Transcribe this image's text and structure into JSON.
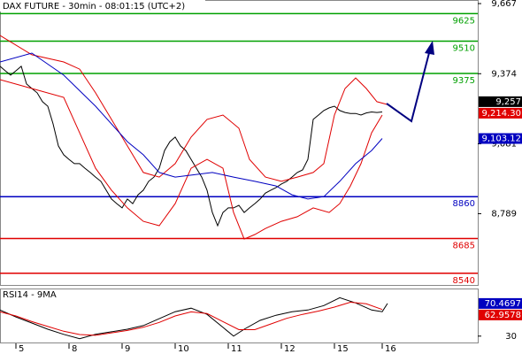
{
  "chart_data": {
    "type": "line",
    "title": "DAX FUTURE - 30min - 08:01:15 (UTC+2)",
    "xlim": [
      0,
      90
    ],
    "xticks": [
      {
        "value": 3,
        "label": "5"
      },
      {
        "value": 13,
        "label": "8"
      },
      {
        "value": 23,
        "label": "9"
      },
      {
        "value": 33,
        "label": "10"
      },
      {
        "value": 43,
        "label": "11"
      },
      {
        "value": 53,
        "label": "12"
      },
      {
        "value": 63,
        "label": "15"
      },
      {
        "value": 72,
        "label": "16"
      }
    ],
    "ylim": [
      8491,
      9682
    ],
    "yticks": [
      {
        "value": 9667,
        "label": "9,667"
      },
      {
        "value": 9374,
        "label": "9,374"
      },
      {
        "value": 9081,
        "label": "9,081"
      },
      {
        "value": 8789,
        "label": "8,789"
      }
    ],
    "series": [
      {
        "color": "#000000",
        "x": [
          0,
          1,
          2,
          3,
          4,
          5,
          6,
          7,
          8,
          9,
          10,
          11,
          12,
          13,
          14,
          15,
          16,
          17,
          18,
          19,
          20,
          21,
          22,
          23,
          24,
          25,
          26,
          27,
          28,
          29,
          30,
          31,
          32,
          33,
          34,
          35,
          36,
          37,
          38,
          39,
          40,
          41,
          42,
          43,
          44,
          45,
          46,
          47,
          48,
          49,
          50,
          51,
          52,
          53,
          54,
          55,
          56,
          57,
          58,
          59,
          60,
          61,
          62,
          63,
          64,
          65,
          66,
          67,
          68,
          69,
          70,
          71,
          72
        ],
        "values": [
          9405,
          9386,
          9368,
          9386,
          9405,
          9331,
          9312,
          9294,
          9257,
          9238,
          9164,
          9072,
          9035,
          9016,
          8998,
          8998,
          8979,
          8961,
          8942,
          8924,
          8887,
          8850,
          8831,
          8813,
          8850,
          8831,
          8868,
          8887,
          8924,
          8942,
          8979,
          9053,
          9090,
          9109,
          9072,
          9053,
          9016,
          8979,
          8942,
          8887,
          8794,
          8739,
          8794,
          8813,
          8813,
          8824,
          8794,
          8813,
          8831,
          8850,
          8875,
          8887,
          8898,
          8913,
          8924,
          8942,
          8961,
          8972,
          9016,
          9183,
          9201,
          9220,
          9231,
          9238,
          9220,
          9212,
          9208,
          9208,
          9201,
          9210,
          9214,
          9212,
          9214
        ]
      },
      {
        "color": "#e00000",
        "x": [
          0,
          6,
          12,
          15,
          18,
          21,
          24,
          27,
          30,
          33,
          36,
          39,
          42,
          45,
          47,
          50,
          53,
          56,
          59,
          61,
          63,
          65,
          67,
          69,
          71,
          73
        ],
        "values": [
          9534,
          9453,
          9423,
          9393,
          9294,
          9183,
          9072,
          8961,
          8942,
          8998,
          9109,
          9183,
          9201,
          9146,
          9016,
          8942,
          8924,
          8942,
          8961,
          8998,
          9201,
          9312,
          9356,
          9312,
          9257,
          9245
        ]
      },
      {
        "color": "#e00000",
        "x": [
          0,
          6,
          12,
          15,
          18,
          21,
          24,
          27,
          30,
          33,
          36,
          39,
          42,
          44,
          46,
          48,
          50,
          53,
          56,
          59,
          62,
          64,
          66,
          68,
          70,
          72
        ],
        "values": [
          9349,
          9312,
          9275,
          9127,
          8979,
          8887,
          8813,
          8757,
          8739,
          8831,
          8979,
          9016,
          8979,
          8794,
          8683,
          8702,
          8727,
          8757,
          8776,
          8813,
          8794,
          8831,
          8905,
          8998,
          9127,
          9201
        ]
      },
      {
        "color": "#0000c0",
        "x": [
          0,
          6,
          12,
          18,
          24,
          27,
          30,
          33,
          36,
          40,
          44,
          48,
          52,
          55,
          58,
          61,
          64,
          67,
          70,
          72
        ],
        "values": [
          9423,
          9460,
          9368,
          9238,
          9090,
          9035,
          8961,
          8942,
          8950,
          8961,
          8942,
          8924,
          8905,
          8868,
          8850,
          8860,
          8924,
          8998,
          9053,
          9103
        ]
      }
    ],
    "levels": [
      {
        "value": 9625,
        "color": "#00a000"
      },
      {
        "value": 9510,
        "color": "#00a000"
      },
      {
        "value": 9375,
        "color": "#00a000"
      },
      {
        "value": 8860,
        "color": "#0000c0"
      },
      {
        "value": 8685,
        "color": "#e00000"
      },
      {
        "value": 8540,
        "color": "#e00000"
      }
    ],
    "price_labels": [
      {
        "value": 9257,
        "label": "9,257",
        "color": "#000000"
      },
      {
        "value": 9214.3,
        "label": "9,214.30",
        "color": "#e00000"
      },
      {
        "value": 9103.12,
        "label": "9,103.12",
        "color": "#0000c0"
      }
    ],
    "indicator": {
      "title": "RSI14 - 9MA",
      "ylim": [
        21,
        89
      ],
      "yticks": [
        30
      ],
      "series": [
        {
          "color": "#000000",
          "x": [
            0,
            3,
            6,
            9,
            12,
            15,
            18,
            21,
            24,
            27,
            30,
            33,
            36,
            39,
            42,
            44,
            46,
            49,
            52,
            55,
            58,
            61,
            64,
            67,
            70,
            72,
            73
          ],
          "values": [
            62.4,
            53.8,
            46.2,
            38.6,
            32.2,
            26.8,
            32.2,
            35.4,
            38.6,
            43.0,
            51.6,
            60.3,
            64.6,
            57.0,
            40.8,
            30,
            38.6,
            49.5,
            55.9,
            60.3,
            62.4,
            67.8,
            77.6,
            71.1,
            62.4,
            60.3,
            70.5
          ]
        },
        {
          "color": "#e00000",
          "x": [
            0,
            3,
            6,
            9,
            12,
            15,
            18,
            21,
            24,
            27,
            30,
            33,
            36,
            39,
            42,
            45,
            48,
            51,
            54,
            57,
            60,
            63,
            66,
            69,
            72
          ],
          "values": [
            60,
            55,
            48,
            42,
            36,
            32,
            31,
            34,
            37,
            41,
            47,
            55,
            60,
            58,
            48,
            38,
            38,
            45,
            52,
            57,
            61,
            66,
            72,
            70,
            63
          ]
        }
      ],
      "value_labels": [
        {
          "value": 70.4697,
          "label": "70.4697",
          "color": "#0000c0"
        },
        {
          "value": 62.9578,
          "label": "62.9578",
          "color": "#e00000"
        }
      ]
    }
  }
}
